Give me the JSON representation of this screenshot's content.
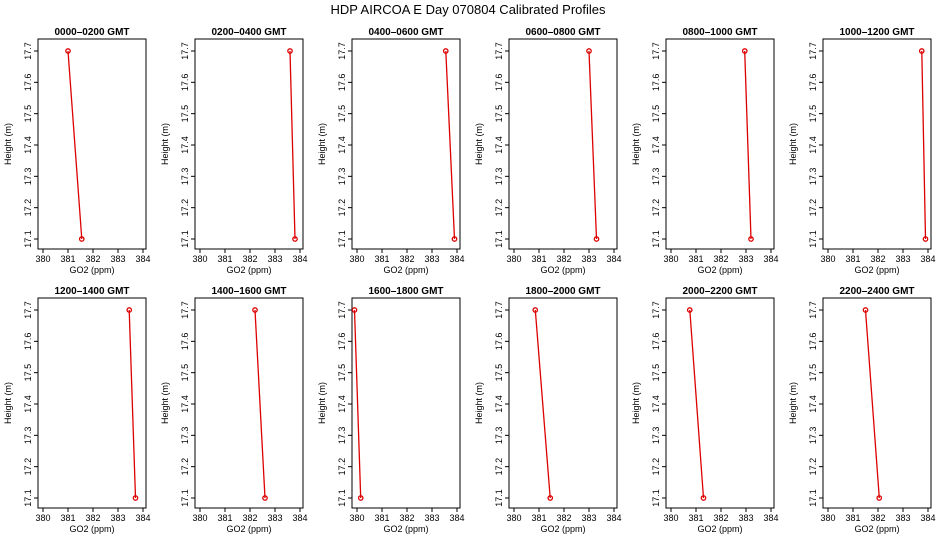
{
  "title": "HDP  AIRCOA E  Day 070804  Calibrated Profiles",
  "colors": {
    "series": "#dd0000",
    "axis": "#000000"
  },
  "chart_data": [
    {
      "type": "line",
      "title": "0000–0200 GMT",
      "xlabel": "GO2 (ppm)",
      "ylabel": "Height (m)",
      "xlim": [
        380,
        384
      ],
      "ylim": [
        17.1,
        17.7
      ],
      "xticks": [
        "380",
        "381",
        "382",
        "383",
        "384"
      ],
      "yticks": [
        "17.1",
        "17.2",
        "17.3",
        "17.4",
        "17.5",
        "17.6",
        "17.7"
      ],
      "x": [
        381.0,
        381.55
      ],
      "y": [
        17.7,
        17.1
      ]
    },
    {
      "type": "line",
      "title": "0200–0400 GMT",
      "xlabel": "GO2 (ppm)",
      "ylabel": "Height (m)",
      "xlim": [
        380,
        384
      ],
      "ylim": [
        17.1,
        17.7
      ],
      "xticks": [
        "380",
        "381",
        "382",
        "383",
        "384"
      ],
      "yticks": [
        "17.1",
        "17.2",
        "17.3",
        "17.4",
        "17.5",
        "17.6",
        "17.7"
      ],
      "x": [
        383.6,
        383.8
      ],
      "y": [
        17.7,
        17.1
      ]
    },
    {
      "type": "line",
      "title": "0400–0600 GMT",
      "xlabel": "GO2 (ppm)",
      "ylabel": "Height (m)",
      "xlim": [
        380,
        384
      ],
      "ylim": [
        17.1,
        17.7
      ],
      "xticks": [
        "380",
        "381",
        "382",
        "383",
        "384"
      ],
      "yticks": [
        "17.1",
        "17.2",
        "17.3",
        "17.4",
        "17.5",
        "17.6",
        "17.7"
      ],
      "x": [
        383.55,
        383.9
      ],
      "y": [
        17.7,
        17.1
      ]
    },
    {
      "type": "line",
      "title": "0600–0800 GMT",
      "xlabel": "GO2 (ppm)",
      "ylabel": "Height (m)",
      "xlim": [
        380,
        384
      ],
      "ylim": [
        17.1,
        17.7
      ],
      "xticks": [
        "380",
        "381",
        "382",
        "383",
        "384"
      ],
      "yticks": [
        "17.1",
        "17.2",
        "17.3",
        "17.4",
        "17.5",
        "17.6",
        "17.7"
      ],
      "x": [
        383.0,
        383.3
      ],
      "y": [
        17.7,
        17.1
      ]
    },
    {
      "type": "line",
      "title": "0800–1000 GMT",
      "xlabel": "GO2 (ppm)",
      "ylabel": "Height (m)",
      "xlim": [
        380,
        384
      ],
      "ylim": [
        17.1,
        17.7
      ],
      "xticks": [
        "380",
        "381",
        "382",
        "383",
        "384"
      ],
      "yticks": [
        "17.1",
        "17.2",
        "17.3",
        "17.4",
        "17.5",
        "17.6",
        "17.7"
      ],
      "x": [
        382.95,
        383.2
      ],
      "y": [
        17.7,
        17.1
      ]
    },
    {
      "type": "line",
      "title": "1000–1200 GMT",
      "xlabel": "GO2 (ppm)",
      "ylabel": "Height (m)",
      "xlim": [
        380,
        384
      ],
      "ylim": [
        17.1,
        17.7
      ],
      "xticks": [
        "380",
        "381",
        "382",
        "383",
        "384"
      ],
      "yticks": [
        "17.1",
        "17.2",
        "17.3",
        "17.4",
        "17.5",
        "17.6",
        "17.7"
      ],
      "x": [
        383.75,
        383.9
      ],
      "y": [
        17.7,
        17.1
      ]
    },
    {
      "type": "line",
      "title": "1200–1400 GMT",
      "xlabel": "GO2 (ppm)",
      "ylabel": "Height (m)",
      "xlim": [
        380,
        384
      ],
      "ylim": [
        17.1,
        17.7
      ],
      "xticks": [
        "380",
        "381",
        "382",
        "383",
        "384"
      ],
      "yticks": [
        "17.1",
        "17.2",
        "17.3",
        "17.4",
        "17.5",
        "17.6",
        "17.7"
      ],
      "x": [
        383.45,
        383.7
      ],
      "y": [
        17.7,
        17.1
      ]
    },
    {
      "type": "line",
      "title": "1400–1600 GMT",
      "xlabel": "GO2 (ppm)",
      "ylabel": "Height (m)",
      "xlim": [
        380,
        384
      ],
      "ylim": [
        17.1,
        17.7
      ],
      "xticks": [
        "380",
        "381",
        "382",
        "383",
        "384"
      ],
      "yticks": [
        "17.1",
        "17.2",
        "17.3",
        "17.4",
        "17.5",
        "17.6",
        "17.7"
      ],
      "x": [
        382.2,
        382.6
      ],
      "y": [
        17.7,
        17.1
      ]
    },
    {
      "type": "line",
      "title": "1600–1800 GMT",
      "xlabel": "GO2 (ppm)",
      "ylabel": "Height (m)",
      "xlim": [
        380,
        384
      ],
      "ylim": [
        17.1,
        17.7
      ],
      "xticks": [
        "380",
        "381",
        "382",
        "383",
        "384"
      ],
      "yticks": [
        "17.1",
        "17.2",
        "17.3",
        "17.4",
        "17.5",
        "17.6",
        "17.7"
      ],
      "x": [
        379.9,
        380.15
      ],
      "y": [
        17.7,
        17.1
      ]
    },
    {
      "type": "line",
      "title": "1800–2000 GMT",
      "xlabel": "GO2 (ppm)",
      "ylabel": "Height (m)",
      "xlim": [
        380,
        384
      ],
      "ylim": [
        17.1,
        17.7
      ],
      "xticks": [
        "380",
        "381",
        "382",
        "383",
        "384"
      ],
      "yticks": [
        "17.1",
        "17.2",
        "17.3",
        "17.4",
        "17.5",
        "17.6",
        "17.7"
      ],
      "x": [
        380.85,
        381.45
      ],
      "y": [
        17.7,
        17.1
      ]
    },
    {
      "type": "line",
      "title": "2000–2200 GMT",
      "xlabel": "GO2 (ppm)",
      "ylabel": "Height (m)",
      "xlim": [
        380,
        384
      ],
      "ylim": [
        17.1,
        17.7
      ],
      "xticks": [
        "380",
        "381",
        "382",
        "383",
        "384"
      ],
      "yticks": [
        "17.1",
        "17.2",
        "17.3",
        "17.4",
        "17.5",
        "17.6",
        "17.7"
      ],
      "x": [
        380.75,
        381.3
      ],
      "y": [
        17.7,
        17.1
      ]
    },
    {
      "type": "line",
      "title": "2200–2400 GMT",
      "xlabel": "GO2 (ppm)",
      "ylabel": "Height (m)",
      "xlim": [
        380,
        384
      ],
      "ylim": [
        17.1,
        17.7
      ],
      "xticks": [
        "380",
        "381",
        "382",
        "383",
        "384"
      ],
      "yticks": [
        "17.1",
        "17.2",
        "17.3",
        "17.4",
        "17.5",
        "17.6",
        "17.7"
      ],
      "x": [
        381.5,
        382.05
      ],
      "y": [
        17.7,
        17.1
      ]
    }
  ]
}
